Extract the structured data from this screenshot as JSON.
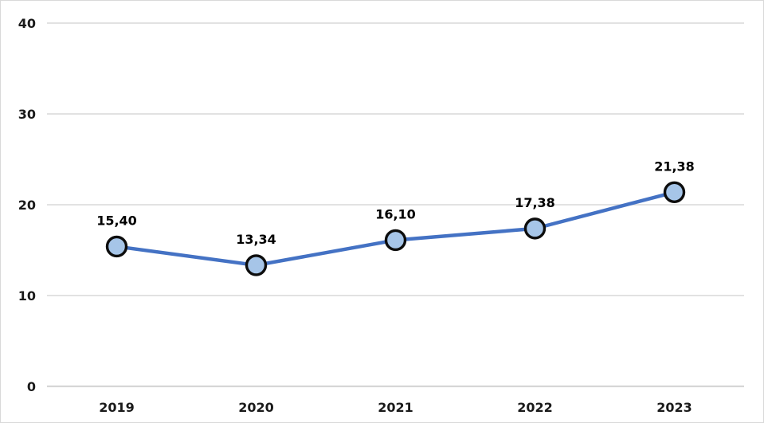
{
  "chart_data": {
    "type": "line",
    "categories": [
      "2019",
      "2020",
      "2021",
      "2022",
      "2023"
    ],
    "series": [
      {
        "name": "value",
        "values": [
          15.4,
          13.34,
          16.1,
          17.38,
          21.38
        ],
        "point_labels": [
          "15,40",
          "13,34",
          "16,10",
          "17,38",
          "21,38"
        ]
      }
    ],
    "title": "",
    "xlabel": "",
    "ylabel": "",
    "ylim": [
      0,
      40
    ],
    "yticks": [
      0,
      10,
      20,
      30,
      40
    ],
    "ytick_labels": [
      "0",
      "10",
      "20",
      "30",
      "40"
    ],
    "grid": "horizontal",
    "legend_position": "none",
    "colors": {
      "line": "#4472C4",
      "marker_fill": "#A6C5E8",
      "marker_stroke": "#0D0D0D",
      "gridline": "#D9D9D9",
      "axis_line": "#D6D6D6",
      "tick_label": "#1A1A1A",
      "data_label": "#000000",
      "background": "#FFFFFF",
      "border": "#D9D9D9"
    }
  }
}
